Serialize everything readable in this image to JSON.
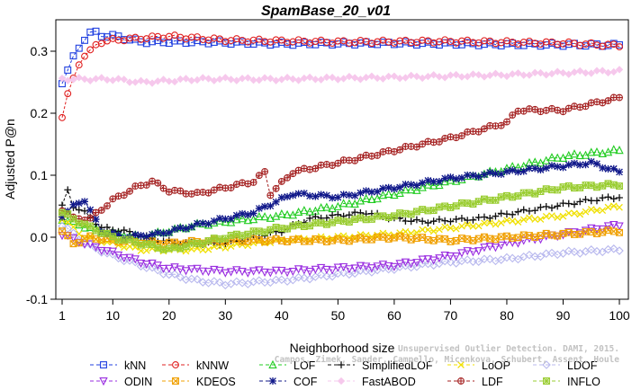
{
  "chart_data": {
    "type": "line",
    "title": "SpamBase_20_v01",
    "xlabel": "Neighborhood size",
    "ylabel": "Adjusted P@n",
    "xlim": [
      1,
      100
    ],
    "ylim": [
      -0.1,
      0.34
    ],
    "x_ticks": [
      "1",
      "10",
      "20",
      "30",
      "40",
      "50",
      "60",
      "70",
      "80",
      "90",
      "100"
    ],
    "y_ticks": [
      "-0.1",
      "0.0",
      "0.1",
      "0.2",
      "0.3"
    ],
    "x_tick_values": [
      1,
      10,
      20,
      30,
      40,
      50,
      60,
      70,
      80,
      90,
      100
    ],
    "y_tick_values": [
      -0.1,
      0.0,
      0.1,
      0.2,
      0.3
    ],
    "grid": false,
    "legend_placement": "bottom",
    "x_step": 1,
    "series": [
      {
        "name": "kNN",
        "color": "#1f3fe0",
        "marker": "square",
        "key": [
          [
            1,
            0.25
          ],
          [
            2,
            0.27
          ],
          [
            3,
            0.29
          ],
          [
            4,
            0.305
          ],
          [
            5,
            0.32
          ],
          [
            6,
            0.33
          ],
          [
            7,
            0.33
          ],
          [
            8,
            0.325
          ],
          [
            10,
            0.325
          ],
          [
            15,
            0.315
          ],
          [
            25,
            0.315
          ],
          [
            40,
            0.312
          ],
          [
            60,
            0.313
          ],
          [
            80,
            0.311
          ],
          [
            100,
            0.31
          ]
        ]
      },
      {
        "name": "kNNW",
        "color": "#e02020",
        "marker": "circle",
        "key": [
          [
            1,
            0.195
          ],
          [
            2,
            0.23
          ],
          [
            3,
            0.255
          ],
          [
            4,
            0.28
          ],
          [
            5,
            0.293
          ],
          [
            6,
            0.3
          ],
          [
            7,
            0.31
          ],
          [
            8,
            0.315
          ],
          [
            10,
            0.318
          ],
          [
            20,
            0.324
          ],
          [
            30,
            0.318
          ],
          [
            50,
            0.315
          ],
          [
            70,
            0.316
          ],
          [
            90,
            0.313
          ],
          [
            100,
            0.309
          ]
        ]
      },
      {
        "name": "LOF",
        "color": "#22cc22",
        "marker": "triangle-up",
        "key": [
          [
            1,
            0.03
          ],
          [
            4,
            0.02
          ],
          [
            8,
            0.01
          ],
          [
            15,
            0.0
          ],
          [
            20,
            0.01
          ],
          [
            25,
            0.02
          ],
          [
            30,
            0.025
          ],
          [
            40,
            0.035
          ],
          [
            50,
            0.05
          ],
          [
            60,
            0.07
          ],
          [
            70,
            0.09
          ],
          [
            80,
            0.11
          ],
          [
            90,
            0.13
          ],
          [
            100,
            0.14
          ]
        ]
      },
      {
        "name": "SimplifiedLOF",
        "color": "#111111",
        "marker": "plus",
        "key": [
          [
            1,
            0.05
          ],
          [
            2,
            0.075
          ],
          [
            3,
            0.05
          ],
          [
            5,
            0.04
          ],
          [
            8,
            0.015
          ],
          [
            12,
            0.01
          ],
          [
            18,
            -0.005
          ],
          [
            22,
            -0.01
          ],
          [
            30,
            -0.01
          ],
          [
            40,
            0.01
          ],
          [
            45,
            0.03
          ],
          [
            55,
            0.04
          ],
          [
            60,
            0.03
          ],
          [
            65,
            0.025
          ],
          [
            75,
            0.03
          ],
          [
            85,
            0.045
          ],
          [
            95,
            0.06
          ],
          [
            100,
            0.065
          ]
        ]
      },
      {
        "name": "LoOP",
        "color": "#f0e000",
        "marker": "x",
        "key": [
          [
            1,
            0.03
          ],
          [
            5,
            0.0
          ],
          [
            10,
            -0.01
          ],
          [
            15,
            -0.02
          ],
          [
            20,
            -0.02
          ],
          [
            25,
            -0.02
          ],
          [
            30,
            -0.015
          ],
          [
            40,
            -0.005
          ],
          [
            50,
            0.0
          ],
          [
            60,
            0.005
          ],
          [
            70,
            0.015
          ],
          [
            80,
            0.025
          ],
          [
            90,
            0.035
          ],
          [
            100,
            0.05
          ]
        ]
      },
      {
        "name": "LDOF",
        "color": "#b8b8ee",
        "marker": "diamond",
        "key": [
          [
            1,
            0.02
          ],
          [
            5,
            -0.01
          ],
          [
            10,
            -0.03
          ],
          [
            15,
            -0.045
          ],
          [
            20,
            -0.06
          ],
          [
            25,
            -0.07
          ],
          [
            30,
            -0.075
          ],
          [
            40,
            -0.07
          ],
          [
            50,
            -0.06
          ],
          [
            60,
            -0.05
          ],
          [
            70,
            -0.04
          ],
          [
            80,
            -0.035
          ],
          [
            90,
            -0.025
          ],
          [
            100,
            -0.02
          ]
        ]
      },
      {
        "name": "ODIN",
        "color": "#9a2ee0",
        "marker": "triangle-down",
        "key": [
          [
            1,
            0.005
          ],
          [
            5,
            -0.01
          ],
          [
            10,
            -0.025
          ],
          [
            15,
            -0.04
          ],
          [
            20,
            -0.05
          ],
          [
            30,
            -0.055
          ],
          [
            40,
            -0.055
          ],
          [
            50,
            -0.05
          ],
          [
            60,
            -0.045
          ],
          [
            70,
            -0.03
          ],
          [
            80,
            -0.01
          ],
          [
            90,
            0.005
          ],
          [
            100,
            0.02
          ]
        ]
      },
      {
        "name": "KDEOS",
        "color": "#f0a000",
        "marker": "square-x",
        "key": [
          [
            1,
            0.01
          ],
          [
            3,
            -0.01
          ],
          [
            6,
            0.0
          ],
          [
            10,
            -0.005
          ],
          [
            20,
            -0.01
          ],
          [
            30,
            -0.005
          ],
          [
            40,
            -0.005
          ],
          [
            50,
            -0.005
          ],
          [
            60,
            0.0
          ],
          [
            70,
            -0.005
          ],
          [
            80,
            0.0
          ],
          [
            90,
            0.005
          ],
          [
            100,
            0.01
          ]
        ]
      },
      {
        "name": "COF",
        "color": "#10188a",
        "marker": "star",
        "key": [
          [
            1,
            0.035
          ],
          [
            3,
            0.05
          ],
          [
            5,
            0.06
          ],
          [
            8,
            0.01
          ],
          [
            12,
            0.0
          ],
          [
            18,
            0.005
          ],
          [
            25,
            0.02
          ],
          [
            35,
            0.04
          ],
          [
            42,
            0.07
          ],
          [
            50,
            0.065
          ],
          [
            60,
            0.08
          ],
          [
            70,
            0.095
          ],
          [
            80,
            0.105
          ],
          [
            90,
            0.115
          ],
          [
            95,
            0.12
          ],
          [
            100,
            0.105
          ]
        ]
      },
      {
        "name": "FastABOD",
        "color": "#f6c8ec",
        "marker": "diamond-fill",
        "key": [
          [
            1,
            0.255
          ],
          [
            10,
            0.255
          ],
          [
            15,
            0.25
          ],
          [
            25,
            0.255
          ],
          [
            40,
            0.255
          ],
          [
            60,
            0.258
          ],
          [
            80,
            0.262
          ],
          [
            90,
            0.265
          ],
          [
            100,
            0.268
          ]
        ]
      },
      {
        "name": "LDF",
        "color": "#a52222",
        "marker": "circle-plus",
        "key": [
          [
            1,
            0.045
          ],
          [
            3,
            0.03
          ],
          [
            6,
            0.03
          ],
          [
            8,
            0.045
          ],
          [
            10,
            0.06
          ],
          [
            14,
            0.08
          ],
          [
            17,
            0.09
          ],
          [
            20,
            0.075
          ],
          [
            25,
            0.07
          ],
          [
            30,
            0.08
          ],
          [
            35,
            0.09
          ],
          [
            37,
            0.105
          ],
          [
            38,
            0.07
          ],
          [
            42,
            0.105
          ],
          [
            50,
            0.12
          ],
          [
            60,
            0.14
          ],
          [
            70,
            0.16
          ],
          [
            80,
            0.185
          ],
          [
            82,
            0.205
          ],
          [
            90,
            0.205
          ],
          [
            100,
            0.225
          ]
        ]
      },
      {
        "name": "INFLO",
        "color": "#9acd32",
        "marker": "square-star",
        "key": [
          [
            1,
            0.04
          ],
          [
            5,
            0.02
          ],
          [
            10,
            0.0
          ],
          [
            20,
            -0.02
          ],
          [
            25,
            -0.01
          ],
          [
            30,
            0.0
          ],
          [
            40,
            0.015
          ],
          [
            50,
            0.025
          ],
          [
            60,
            0.035
          ],
          [
            70,
            0.05
          ],
          [
            80,
            0.065
          ],
          [
            90,
            0.08
          ],
          [
            100,
            0.085
          ]
        ]
      }
    ]
  },
  "credit_line1": "Unsupervised Outlier Detection. DAMI, 2015.",
  "credit_line2": "Campos, Zimek, Sander, Campello, Micenkova, Schubert, Assent, Houle"
}
